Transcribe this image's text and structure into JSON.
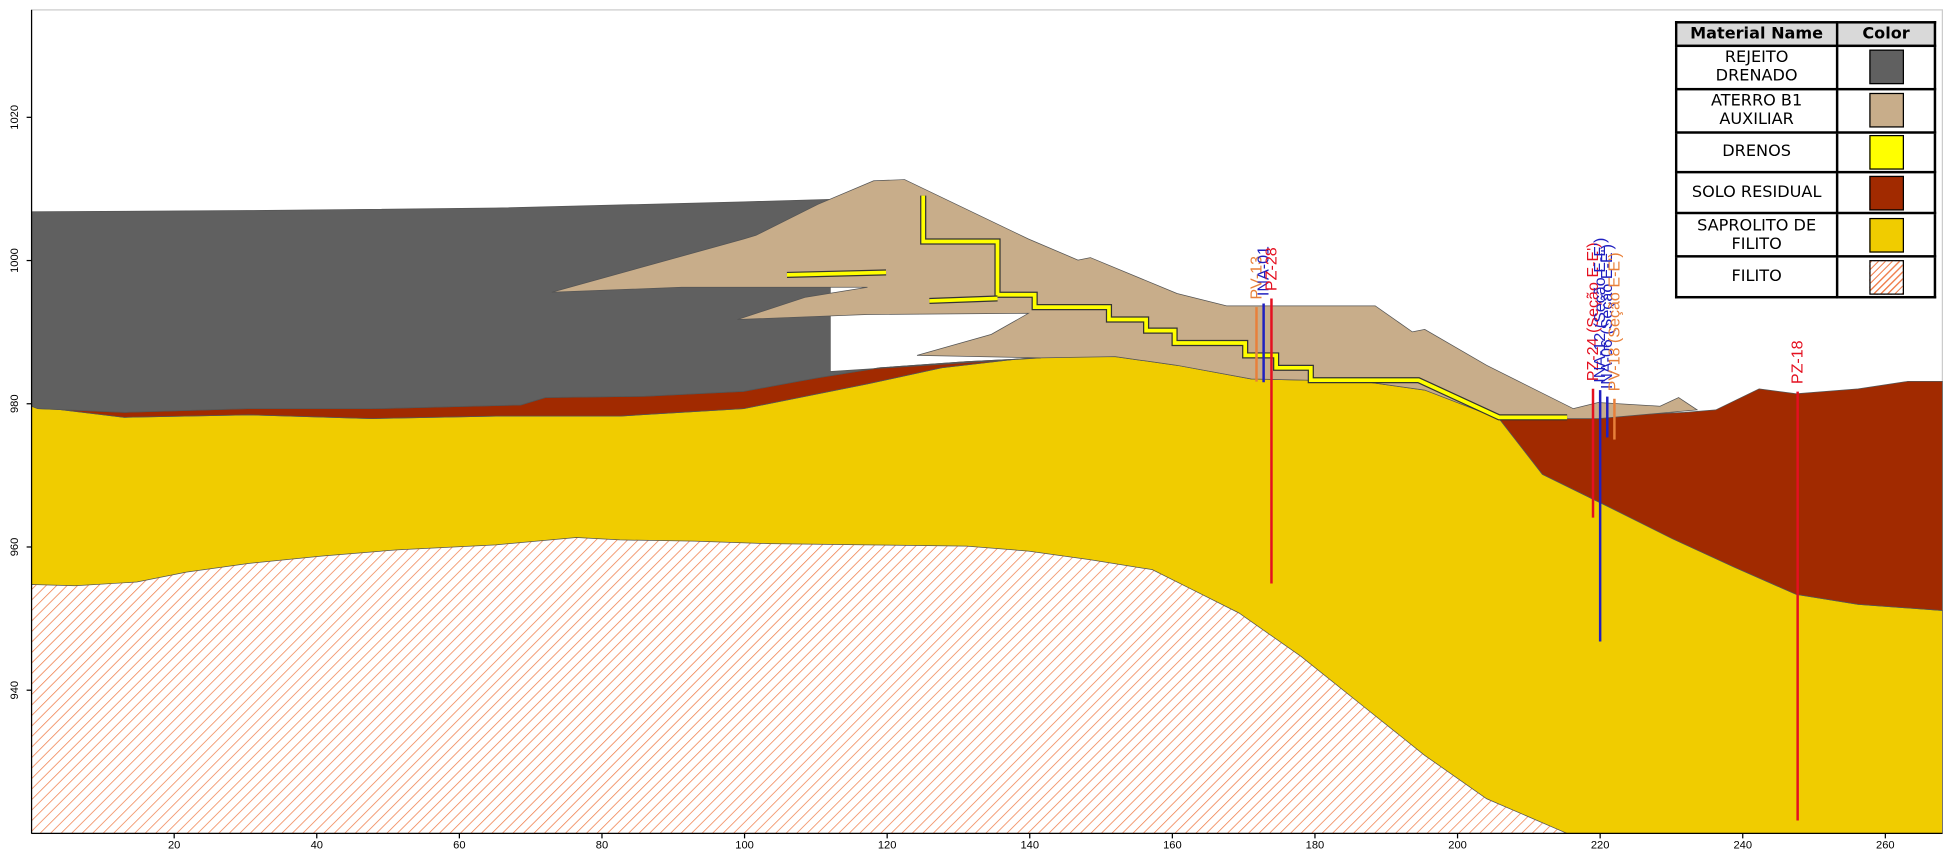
{
  "axes": {
    "xlim": [
      0,
      268
    ],
    "ylim": [
      920,
      1035
    ],
    "xticks": [
      20,
      40,
      60,
      80,
      100,
      120,
      140,
      160,
      180,
      200,
      220,
      240,
      260
    ],
    "yticks": [
      940,
      960,
      980,
      1000,
      1020
    ]
  },
  "legend": {
    "header": [
      "Material Name",
      "Color"
    ],
    "materials": [
      {
        "name": "REJEITO DRENADO",
        "color": "#606060"
      },
      {
        "name": "ATERRO B1 AUXILIAR",
        "color": "#c8ad8a"
      },
      {
        "name": "DRENOS",
        "color": "#ffff00"
      },
      {
        "name": "SOLO RESIDUAL",
        "color": "#a12a00"
      },
      {
        "name": "SAPROLITO DE FILITO",
        "color": "#f0cc00"
      },
      {
        "name": "FILITO",
        "color": "#f07d4a",
        "pattern": "hatch"
      }
    ]
  },
  "instruments": [
    {
      "label": "PV-13",
      "color": "#e8803a",
      "x": 171.8,
      "top": 993.5,
      "bottom": 983.1
    },
    {
      "label": "INA-01",
      "color": "#2020c0",
      "x": 172.8,
      "top": 994,
      "bottom": 983
    },
    {
      "label": "PZ-28",
      "color": "#e41020",
      "x": 173.9,
      "top": 994.7,
      "bottom": 954.9
    },
    {
      "label": "PZ-24 (Seção E-E')",
      "color": "#e41020",
      "x": 219,
      "top": 982.1,
      "bottom": 964.1
    },
    {
      "label": "INA-12 (Seção E-E')",
      "color": "#2020c0",
      "x": 220,
      "top": 981.9,
      "bottom": 946.8
    },
    {
      "label": "INA-06 (Seção E-E')",
      "color": "#2020c0",
      "x": 221,
      "top": 981,
      "bottom": 975.3
    },
    {
      "label": "PV-18 (Seção E-E')",
      "color": "#e8803a",
      "x": 222,
      "top": 980.7,
      "bottom": 975
    },
    {
      "label": "PZ-18",
      "color": "#e41020",
      "x": 247.7,
      "top": 981.7,
      "bottom": 921.8
    }
  ]
}
